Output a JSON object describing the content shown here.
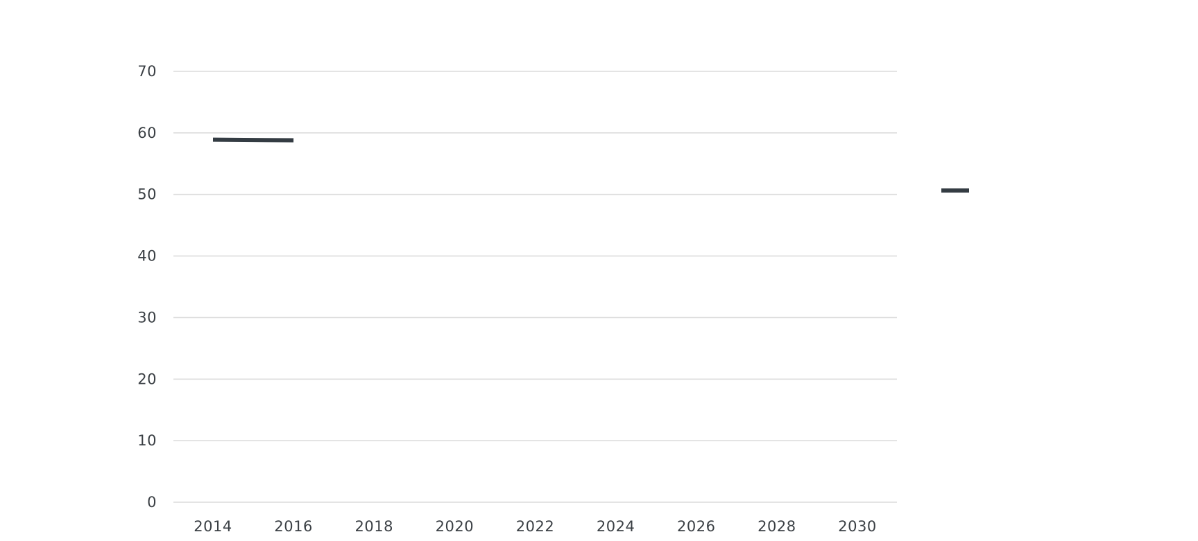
{
  "chart_data": {
    "type": "line",
    "title": "",
    "xlabel": "",
    "ylabel": "",
    "xlim": [
      2013,
      2031
    ],
    "ylim": [
      0,
      70
    ],
    "x_ticks": [
      "2014",
      "2016",
      "2018",
      "2020",
      "2022",
      "2024",
      "2026",
      "2028",
      "2030"
    ],
    "y_ticks": [
      "0",
      "10",
      "20",
      "30",
      "40",
      "50",
      "60",
      "70"
    ],
    "grid": "horizontal",
    "legend": "right",
    "series": [
      {
        "color": "#343c43",
        "points": [
          {
            "x": 2014,
            "y": 58.9
          },
          {
            "x": 2016,
            "y": 58.8
          }
        ]
      }
    ]
  }
}
